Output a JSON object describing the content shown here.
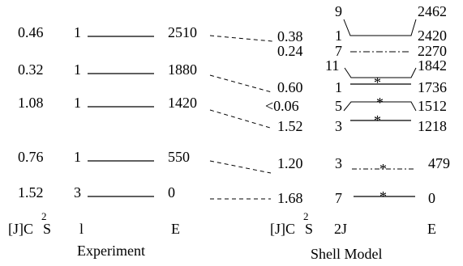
{
  "colors": {
    "ink": "#000000",
    "background": "#ffffff"
  },
  "experiment": {
    "title": "Experiment",
    "headers": {
      "c2s_prefix": "[J]C",
      "c2s_sup": "2",
      "c2s_suffix": "S",
      "l": "l",
      "e": "E"
    },
    "levels": [
      {
        "c2s": "0.46",
        "l": "1",
        "e": "2510"
      },
      {
        "c2s": "0.32",
        "l": "1",
        "e": "1880"
      },
      {
        "c2s": "1.08",
        "l": "1",
        "e": "1420"
      },
      {
        "c2s": "0.76",
        "l": "1",
        "e": "550"
      },
      {
        "c2s": "1.52",
        "l": "3",
        "e": "0"
      }
    ]
  },
  "shell_model": {
    "title": "Shell Model",
    "headers": {
      "c2s_prefix": "[J]C",
      "c2s_sup": "2",
      "c2s_suffix": "S",
      "twoj": "2J",
      "e": "E"
    },
    "c2s_values": [
      "0.38",
      "0.24",
      "0.60",
      "<0.06",
      "1.52",
      "1.20",
      "1.68"
    ],
    "levels": [
      {
        "twoj": "9",
        "e": "2462"
      },
      {
        "twoj": "1",
        "e": "2420"
      },
      {
        "twoj": "7",
        "e": "2270"
      },
      {
        "twoj": "11",
        "e": "1842"
      },
      {
        "twoj": "1",
        "e": "1736"
      },
      {
        "twoj": "5",
        "e": "1512"
      },
      {
        "twoj": "3",
        "e": "1218"
      },
      {
        "twoj": "3",
        "e": "479"
      },
      {
        "twoj": "7",
        "e": "0"
      }
    ]
  }
}
